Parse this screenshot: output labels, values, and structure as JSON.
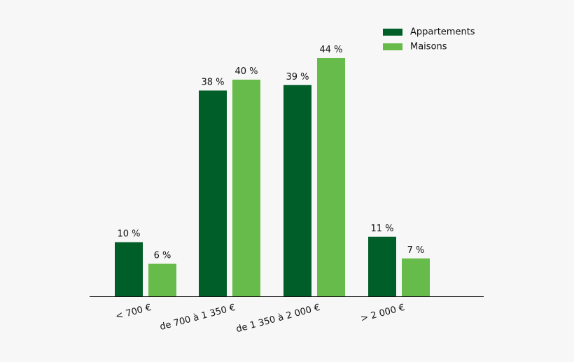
{
  "chart_data": {
    "type": "bar",
    "categories": [
      "< 700 €",
      "de 700 à 1 350 €",
      "de 1 350 à 2 000 €",
      "> 2 000 €"
    ],
    "series": [
      {
        "name": "Appartements",
        "values": [
          10,
          38,
          39,
          11
        ],
        "labels": [
          "10 %",
          "38 %",
          "39 %",
          "11 %"
        ],
        "color": "#005f29"
      },
      {
        "name": "Maisons",
        "values": [
          6,
          40,
          44,
          7
        ],
        "labels": [
          "6 %",
          "40 %",
          "44 %",
          "7 %"
        ],
        "color": "#66bb4a"
      }
    ],
    "title": "",
    "xlabel": "",
    "ylabel": "",
    "ylim": [
      0,
      50
    ],
    "grid": false,
    "legend_position": "top-right"
  }
}
